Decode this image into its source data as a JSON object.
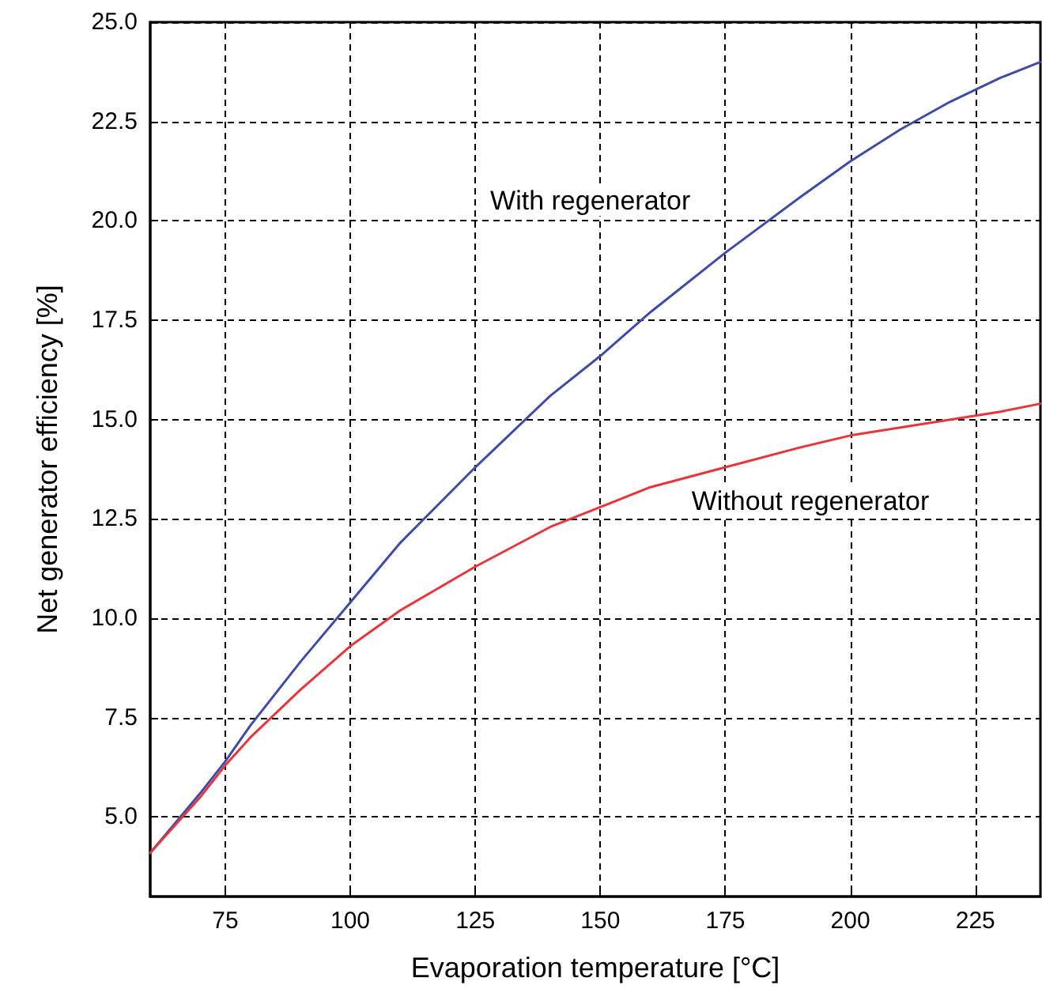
{
  "chart_data": {
    "type": "line",
    "xlabel": "Evaporation temperature [°C]",
    "ylabel": "Net generator efficiency [%]",
    "xlim": [
      60,
      238
    ],
    "xticks": [
      75,
      100,
      125,
      150,
      175,
      200,
      225
    ],
    "ylim": [
      3,
      25
    ],
    "yticks": [
      {
        "value": 5,
        "label": "5.0"
      },
      {
        "value": 7.5,
        "label": "7.5"
      },
      {
        "value": 10,
        "label": "10.0"
      },
      {
        "value": 12.5,
        "label": "12.5"
      },
      {
        "value": 15,
        "label": "15.0"
      },
      {
        "value": 17.5,
        "label": "17.5"
      },
      {
        "value": 20,
        "label": "20.0"
      },
      {
        "value": 22.5,
        "label": "22.5"
      },
      {
        "value": 25,
        "label": "25.0"
      }
    ],
    "grid": true,
    "legend": false,
    "marker": "none",
    "line_style": "solid",
    "series": [
      {
        "name": "With regenerator",
        "color": "#3f4ba6",
        "x": [
          60,
          70,
          75,
          80,
          90,
          100,
          110,
          125,
          140,
          150,
          160,
          175,
          190,
          200,
          210,
          220,
          230,
          238
        ],
        "values": [
          4.1,
          5.6,
          6.4,
          7.3,
          8.9,
          10.4,
          11.9,
          13.8,
          15.6,
          16.6,
          17.7,
          19.2,
          20.6,
          21.5,
          22.3,
          23.0,
          23.6,
          24.0
        ]
      },
      {
        "name": "Without regenerator",
        "color": "#e8353b",
        "x": [
          60,
          70,
          75,
          80,
          90,
          100,
          110,
          125,
          140,
          150,
          160,
          175,
          190,
          200,
          210,
          220,
          230,
          238
        ],
        "values": [
          4.1,
          5.5,
          6.3,
          7.0,
          8.2,
          9.3,
          10.2,
          11.3,
          12.3,
          12.8,
          13.3,
          13.8,
          14.3,
          14.6,
          14.8,
          15.0,
          15.2,
          15.4
        ]
      }
    ]
  }
}
